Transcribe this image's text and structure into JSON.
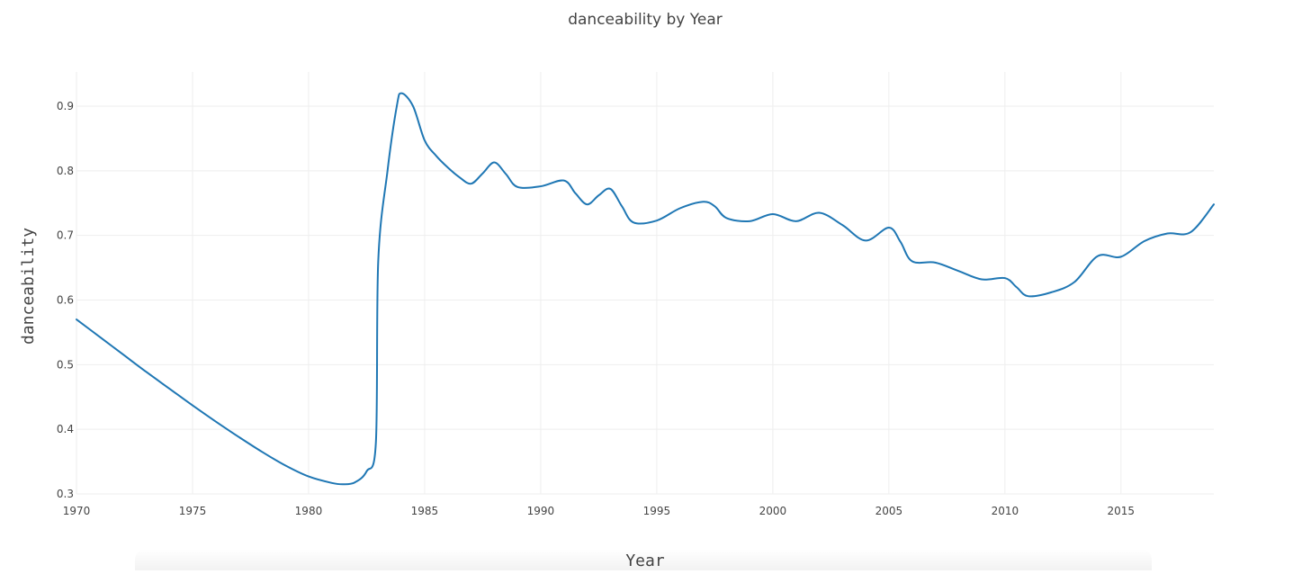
{
  "chart_data": {
    "type": "line",
    "title": "danceability by Year",
    "xlabel": "Year",
    "ylabel": "danceability",
    "xlim": [
      1970,
      2019
    ],
    "ylim": [
      0.3,
      0.95
    ],
    "x_ticks": [
      1970,
      1975,
      1980,
      1985,
      1990,
      1995,
      2000,
      2005,
      2010,
      2015
    ],
    "y_ticks": [
      0.3,
      0.4,
      0.5,
      0.6,
      0.7,
      0.8,
      0.9
    ],
    "grid": true,
    "series": [
      {
        "color": "#1f77b4",
        "x": [
          1970,
          1971,
          1972,
          1973,
          1974,
          1975,
          1976,
          1977,
          1978,
          1979,
          1980,
          1981,
          1981.5,
          1982,
          1982.5,
          1982.9,
          1983,
          1983.4,
          1983.8,
          1984,
          1984.5,
          1985,
          1985.5,
          1986,
          1986.5,
          1987,
          1987.5,
          1988,
          1988.5,
          1989,
          1990,
          1991,
          1991.5,
          1992,
          1992.5,
          1993,
          1993.5,
          1994,
          1995,
          1996,
          1997,
          1997.5,
          1998,
          1999,
          2000,
          2001,
          2002,
          2003,
          2004,
          2005,
          2005.5,
          2006,
          2007,
          2008,
          2009,
          2010,
          2010.5,
          2011,
          2012,
          2013,
          2014,
          2015,
          2016,
          2017,
          2018,
          2019
        ],
        "y": [
          0.57,
          0.543,
          0.516,
          0.489,
          0.463,
          0.437,
          0.412,
          0.388,
          0.365,
          0.344,
          0.327,
          0.317,
          0.315,
          0.318,
          0.335,
          0.38,
          0.66,
          0.8,
          0.9,
          0.92,
          0.9,
          0.847,
          0.823,
          0.805,
          0.79,
          0.78,
          0.796,
          0.813,
          0.795,
          0.775,
          0.776,
          0.785,
          0.765,
          0.748,
          0.762,
          0.772,
          0.745,
          0.72,
          0.723,
          0.742,
          0.752,
          0.745,
          0.727,
          0.722,
          0.733,
          0.722,
          0.735,
          0.716,
          0.692,
          0.712,
          0.69,
          0.66,
          0.658,
          0.645,
          0.632,
          0.634,
          0.62,
          0.606,
          0.612,
          0.628,
          0.668,
          0.667,
          0.691,
          0.703,
          0.705,
          0.748
        ]
      }
    ]
  }
}
